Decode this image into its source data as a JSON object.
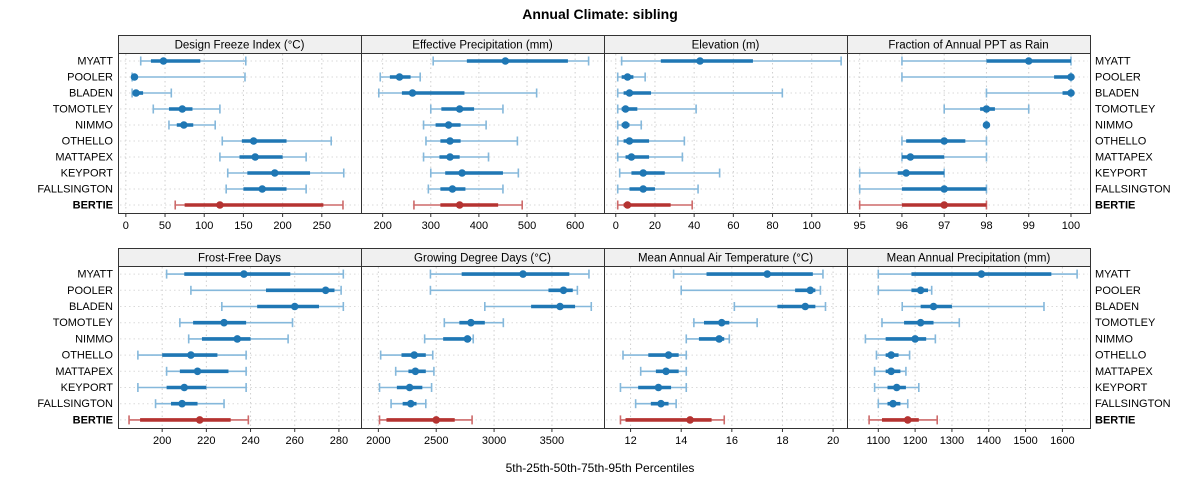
{
  "chart_data": {
    "type": "dot-interval",
    "title": "Annual Climate: sibling",
    "footer": "5th-25th-50th-75th-95th Percentiles",
    "percentiles": [
      "5th",
      "25th",
      "50th",
      "75th",
      "95th"
    ],
    "row_labels": [
      "MYATT",
      "POOLER",
      "BLADEN",
      "TOMOTLEY",
      "NIMMO",
      "OTHELLO",
      "MATTAPEX",
      "KEYPORT",
      "FALLSINGTON",
      "BERTIE"
    ],
    "highlight_row": "BERTIE",
    "legend_position": "none",
    "grid": "dotted",
    "colors": {
      "series_dark": "#1F77B4",
      "series_light": "#85B8DB",
      "highlight_dark": "#B53331",
      "highlight_light": "#CD6A6A",
      "grid_line": "#CFCFCF",
      "row_line": "#DADADA",
      "panel_header_bg": "#F0F0F0",
      "border": "#333333",
      "text": "#000000"
    },
    "panels": [
      {
        "title": "Design Freeze Index (°C)",
        "xlim": [
          -10,
          300
        ],
        "ticks": [
          0,
          50,
          100,
          150,
          200,
          250
        ],
        "values": {
          "MYATT": [
            19,
            32,
            48,
            95,
            153
          ],
          "POOLER": [
            8,
            9,
            11,
            15,
            152
          ],
          "BLADEN": [
            8,
            10,
            13,
            22,
            58
          ],
          "TOMOTLEY": [
            35,
            55,
            72,
            85,
            120
          ],
          "NIMMO": [
            55,
            65,
            74,
            86,
            114
          ],
          "OTHELLO": [
            123,
            148,
            163,
            205,
            262
          ],
          "MATTAPEX": [
            120,
            145,
            165,
            200,
            230
          ],
          "KEYPORT": [
            130,
            155,
            190,
            235,
            278
          ],
          "FALLSINGTON": [
            128,
            150,
            174,
            205,
            230
          ],
          "BERTIE": [
            63,
            75,
            120,
            252,
            277
          ]
        }
      },
      {
        "title": "Effective Precipitation (mm)",
        "xlim": [
          155,
          660
        ],
        "ticks": [
          200,
          300,
          400,
          500,
          600
        ],
        "values": {
          "MYATT": [
            305,
            375,
            455,
            585,
            628
          ],
          "POOLER": [
            195,
            215,
            235,
            258,
            278
          ],
          "BLADEN": [
            192,
            240,
            262,
            370,
            520
          ],
          "TOMOTLEY": [
            300,
            322,
            360,
            390,
            450
          ],
          "NIMMO": [
            285,
            310,
            337,
            362,
            415
          ],
          "OTHELLO": [
            290,
            320,
            340,
            362,
            480
          ],
          "MATTAPEX": [
            285,
            318,
            340,
            360,
            420
          ],
          "KEYPORT": [
            300,
            330,
            365,
            450,
            482
          ],
          "FALLSINGTON": [
            295,
            320,
            345,
            372,
            450
          ],
          "BERTIE": [
            265,
            320,
            360,
            440,
            490
          ]
        }
      },
      {
        "title": "Elevation (m)",
        "xlim": [
          -6,
          118
        ],
        "ticks": [
          0,
          20,
          40,
          60,
          80,
          100
        ],
        "values": {
          "MYATT": [
            3,
            23,
            43,
            70,
            115
          ],
          "POOLER": [
            1,
            3,
            6,
            9,
            15
          ],
          "BLADEN": [
            1,
            4,
            7,
            18,
            85
          ],
          "TOMOTLEY": [
            1,
            3,
            5,
            11,
            41
          ],
          "NIMMO": [
            1,
            3,
            5,
            7,
            13
          ],
          "OTHELLO": [
            1,
            4,
            7,
            17,
            35
          ],
          "MATTAPEX": [
            1,
            5,
            8,
            17,
            34
          ],
          "KEYPORT": [
            2,
            8,
            14,
            25,
            53
          ],
          "FALLSINGTON": [
            1,
            7,
            14,
            20,
            42
          ],
          "BERTIE": [
            1,
            4,
            6,
            28,
            39
          ]
        }
      },
      {
        "title": "Fraction of Annual PPT as Rain",
        "xlim": [
          94.7,
          100.45
        ],
        "ticks": [
          95,
          96,
          97,
          98,
          99,
          100
        ],
        "values": {
          "MYATT": [
            96,
            98,
            99,
            100,
            100
          ],
          "POOLER": [
            96,
            99.6,
            100,
            100,
            100
          ],
          "BLADEN": [
            98,
            99.8,
            100,
            100,
            100
          ],
          "TOMOTLEY": [
            97,
            97.85,
            98,
            98.2,
            99
          ],
          "NIMMO": [
            98,
            98,
            98,
            98,
            98
          ],
          "OTHELLO": [
            96,
            96.1,
            97,
            97.5,
            98
          ],
          "MATTAPEX": [
            96,
            96,
            96.2,
            97,
            98
          ],
          "KEYPORT": [
            95,
            95.9,
            96.1,
            97,
            97
          ],
          "FALLSINGTON": [
            95,
            96,
            97,
            98,
            98
          ],
          "BERTIE": [
            95,
            96,
            97,
            98,
            98
          ]
        }
      },
      {
        "title": "Frost-Free Days",
        "xlim": [
          180,
          290
        ],
        "ticks": [
          200,
          220,
          240,
          260,
          280
        ],
        "values": {
          "MYATT": [
            202,
            210,
            237,
            258,
            282
          ],
          "POOLER": [
            213,
            247,
            274,
            278,
            281
          ],
          "BLADEN": [
            227,
            243,
            260,
            271,
            282
          ],
          "TOMOTLEY": [
            208,
            214,
            228,
            238,
            259
          ],
          "NIMMO": [
            212,
            218,
            234,
            240,
            257
          ],
          "OTHELLO": [
            189,
            200,
            213,
            225,
            238
          ],
          "MATTAPEX": [
            202,
            208,
            216,
            230,
            238
          ],
          "KEYPORT": [
            189,
            202,
            210,
            220,
            238
          ],
          "FALLSINGTON": [
            197,
            204,
            209,
            216,
            228
          ],
          "BERTIE": [
            185,
            190,
            217,
            231,
            239
          ]
        }
      },
      {
        "title": "Growing Degree Days (°C)",
        "xlim": [
          1850,
          3950
        ],
        "ticks": [
          2000,
          2500,
          3000,
          3500
        ],
        "values": {
          "MYATT": [
            2450,
            2720,
            3250,
            3650,
            3820
          ],
          "POOLER": [
            2450,
            3470,
            3600,
            3680,
            3720
          ],
          "BLADEN": [
            2920,
            3320,
            3570,
            3700,
            3840
          ],
          "TOMOTLEY": [
            2570,
            2700,
            2800,
            2920,
            3080
          ],
          "NIMMO": [
            2400,
            2560,
            2770,
            2800,
            2820
          ],
          "OTHELLO": [
            2020,
            2200,
            2310,
            2410,
            2470
          ],
          "MATTAPEX": [
            2150,
            2260,
            2320,
            2410,
            2480
          ],
          "KEYPORT": [
            2010,
            2160,
            2270,
            2380,
            2460
          ],
          "FALLSINGTON": [
            2110,
            2210,
            2280,
            2330,
            2410
          ],
          "BERTIE": [
            2010,
            2070,
            2500,
            2660,
            2810
          ]
        }
      },
      {
        "title": "Mean Annual Air Temperature (°C)",
        "xlim": [
          10.95,
          20.55
        ],
        "ticks": [
          12,
          14,
          16,
          18,
          20
        ],
        "values": {
          "MYATT": [
            13.7,
            15.0,
            17.4,
            19.2,
            19.6
          ],
          "POOLER": [
            14.0,
            18.5,
            19.1,
            19.3,
            19.5
          ],
          "BLADEN": [
            16.1,
            17.8,
            18.9,
            19.3,
            19.7
          ],
          "TOMOTLEY": [
            14.5,
            14.9,
            15.6,
            15.9,
            17.0
          ],
          "NIMMO": [
            14.2,
            14.7,
            15.5,
            15.7,
            15.9
          ],
          "OTHELLO": [
            11.7,
            12.7,
            13.5,
            13.9,
            14.2
          ],
          "MATTAPEX": [
            12.4,
            13.0,
            13.4,
            13.9,
            14.2
          ],
          "KEYPORT": [
            11.6,
            12.3,
            13.1,
            13.6,
            14.2
          ],
          "FALLSINGTON": [
            12.2,
            12.8,
            13.2,
            13.5,
            13.8
          ],
          "BERTIE": [
            11.6,
            11.8,
            14.35,
            15.2,
            15.7
          ]
        }
      },
      {
        "title": "Mean Annual Precipitation (mm)",
        "xlim": [
          1015,
          1675
        ],
        "ticks": [
          1100,
          1200,
          1300,
          1400,
          1500,
          1600
        ],
        "values": {
          "MYATT": [
            1100,
            1190,
            1380,
            1570,
            1640
          ],
          "POOLER": [
            1100,
            1190,
            1215,
            1235,
            1245
          ],
          "BLADEN": [
            1165,
            1215,
            1250,
            1300,
            1550
          ],
          "TOMOTLEY": [
            1110,
            1170,
            1215,
            1250,
            1320
          ],
          "NIMMO": [
            1065,
            1120,
            1200,
            1230,
            1255
          ],
          "OTHELLO": [
            1095,
            1120,
            1135,
            1155,
            1185
          ],
          "MATTAPEX": [
            1090,
            1120,
            1135,
            1160,
            1175
          ],
          "KEYPORT": [
            1090,
            1125,
            1150,
            1175,
            1210
          ],
          "FALLSINGTON": [
            1100,
            1125,
            1140,
            1160,
            1180
          ],
          "BERTIE": [
            1075,
            1110,
            1180,
            1210,
            1260
          ]
        }
      }
    ]
  }
}
